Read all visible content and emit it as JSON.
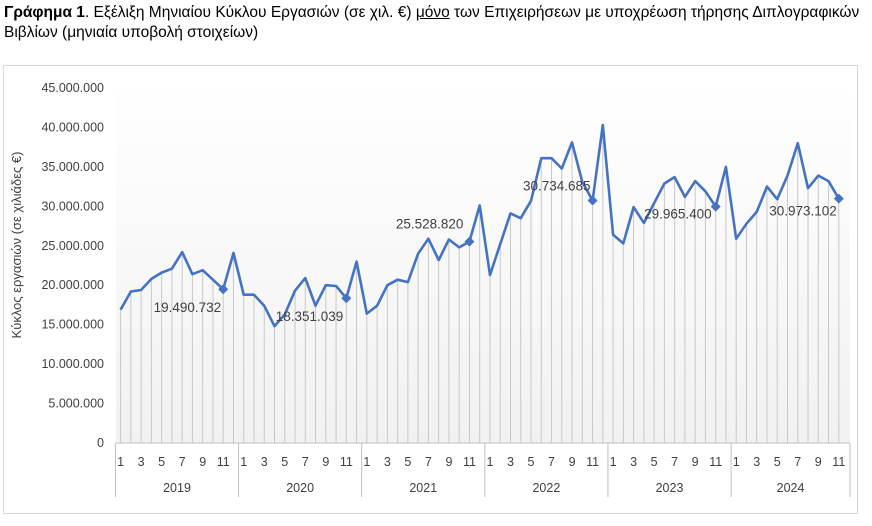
{
  "caption": {
    "bold": "Γράφημα 1",
    "part1": ". Εξέλιξη Μηνιαίου Κύκλου Εργασιών (σε χιλ. €) ",
    "underlined": "μόνο",
    "part2": " των Επιχειρήσεων με υποχρέωση τήρησης Διπλογραφικών",
    "line2": "Βιβλίων (μηνιαία υποβολή στοιχείων)"
  },
  "chart_data": {
    "type": "line",
    "ylabel": "Κύκλος εργασιών (σε χιλιάδες €)",
    "ylim": [
      0,
      45000000
    ],
    "yticks": [
      0,
      5000000,
      10000000,
      15000000,
      20000000,
      25000000,
      30000000,
      35000000,
      40000000,
      45000000
    ],
    "ytick_labels": [
      "0",
      "5.000.000",
      "10.000.000",
      "15.000.000",
      "20.000.000",
      "25.000.000",
      "30.000.000",
      "35.000.000",
      "40.000.000",
      "45.000.000"
    ],
    "month_tick_labels": [
      "1",
      "3",
      "5",
      "7",
      "9",
      "11"
    ],
    "years": [
      "2019",
      "2020",
      "2021",
      "2022",
      "2023",
      "2024"
    ],
    "grid": false,
    "series": [
      {
        "values": [
          16900000,
          19200000,
          19400000,
          20800000,
          21600000,
          22100000,
          24200000,
          21400000,
          21900000,
          20700000,
          19490732,
          24100000,
          18800000,
          18800000,
          17400000,
          14800000,
          16300000,
          19300000,
          20900000,
          17400000,
          20000000,
          19900000,
          18351039,
          23000000,
          16400000,
          17400000,
          20000000,
          20700000,
          20400000,
          24000000,
          25900000,
          23200000,
          25800000,
          24800000,
          25528820,
          30100000,
          21300000,
          25200000,
          29100000,
          28500000,
          30700000,
          36100000,
          36100000,
          34800000,
          38100000,
          33100000,
          30734685,
          40300000,
          26400000,
          25300000,
          29900000,
          27900000,
          30400000,
          32900000,
          33700000,
          31200000,
          33200000,
          31900000,
          29965400,
          35000000,
          25900000,
          27800000,
          29300000,
          32500000,
          30900000,
          33900000,
          38000000,
          32300000,
          33900000,
          33200000,
          30973102
        ]
      }
    ],
    "annotations": [
      {
        "index": 10,
        "label": "19.490.732"
      },
      {
        "index": 22,
        "label": "18.351.039"
      },
      {
        "index": 34,
        "label": "25.528.820"
      },
      {
        "index": 46,
        "label": "30.734.685"
      },
      {
        "index": 58,
        "label": "29.965.400"
      },
      {
        "index": 70,
        "label": "30.973.102"
      }
    ],
    "colors": {
      "line": "#4472c4",
      "droplines": "#c8c8c8",
      "axis": "#bfbfbf",
      "text": "#404040"
    }
  }
}
